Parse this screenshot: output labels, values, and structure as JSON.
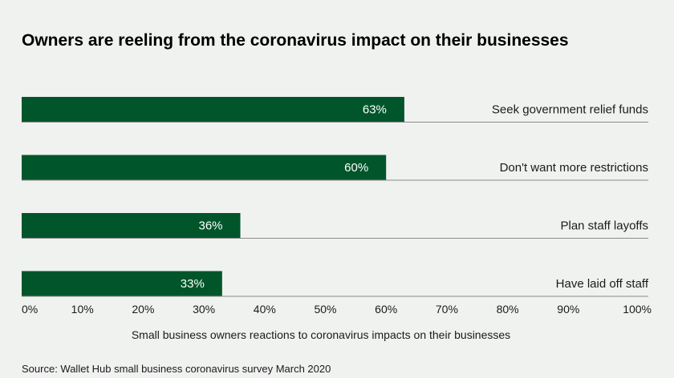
{
  "colors": {
    "bar": "#00562a",
    "baseline": "#8a8a8a",
    "background": "#f0f2f0"
  },
  "chart_data": {
    "type": "bar",
    "orientation": "horizontal",
    "title": "Owners are reeling from the coronavirus impact on their businesses",
    "xlabel": "Small business owners reactions to coronavirus impacts on their businesses",
    "ylabel": "",
    "categories": [
      "Seek government relief funds",
      "Don't want more restrictions",
      "Plan staff layoffs",
      "Have laid off staff"
    ],
    "values": [
      63,
      60,
      36,
      33
    ],
    "value_labels": [
      "63%",
      "60%",
      "36%",
      "33%"
    ],
    "xlim": [
      0,
      100
    ],
    "ticks": [
      0,
      10,
      20,
      30,
      40,
      50,
      60,
      70,
      80,
      90,
      100
    ],
    "tick_labels": [
      "0%",
      "10%",
      "20%",
      "30%",
      "40%",
      "50%",
      "60%",
      "70%",
      "80%",
      "90%",
      "100%"
    ],
    "grid": false,
    "legend": "none",
    "source": "Source: Wallet Hub small business coronavirus survey March 2020"
  }
}
